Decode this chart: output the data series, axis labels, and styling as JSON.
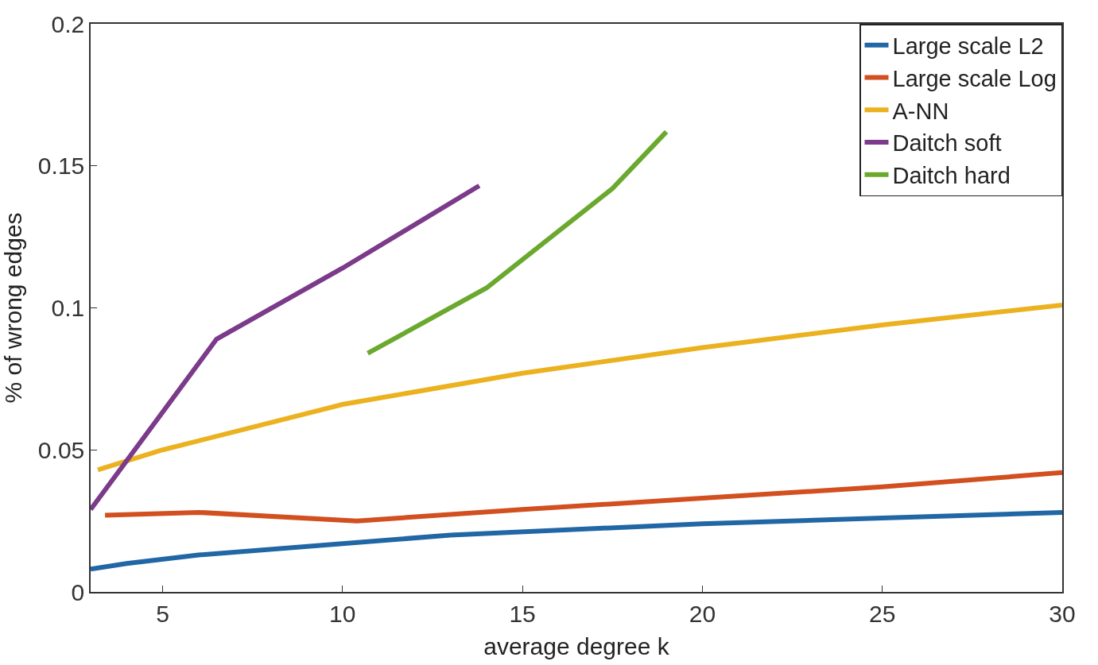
{
  "chart_data": {
    "type": "line",
    "xlabel": "average degree k",
    "ylabel": "% of wrong edges",
    "xlim": [
      3,
      30
    ],
    "xticks": [
      5,
      10,
      15,
      20,
      25,
      30
    ],
    "ylim": [
      0,
      0.2
    ],
    "yticks": [
      0,
      0.05,
      0.1,
      0.15,
      0.2
    ],
    "legend": "top right",
    "marker": "none",
    "line_style": "solid",
    "series": [
      {
        "name": "Large scale L2",
        "color": "#2166a5",
        "x": [
          3,
          4,
          6,
          10,
          13,
          20,
          25,
          30
        ],
        "values": [
          0.008,
          0.01,
          0.013,
          0.017,
          0.02,
          0.024,
          0.026,
          0.028
        ]
      },
      {
        "name": "Large scale Log",
        "color": "#d24f1f",
        "x": [
          3.4,
          6,
          10.4,
          15,
          20,
          25,
          30
        ],
        "values": [
          0.027,
          0.028,
          0.025,
          0.029,
          0.033,
          0.037,
          0.042
        ]
      },
      {
        "name": "A-NN",
        "color": "#ebb11f",
        "x": [
          3.2,
          5,
          10,
          15,
          20,
          25,
          30
        ],
        "values": [
          0.043,
          0.05,
          0.066,
          0.077,
          0.086,
          0.094,
          0.101
        ]
      },
      {
        "name": "Daitch soft",
        "color": "#7b3a8a",
        "x": [
          3,
          6.5,
          10,
          13.8
        ],
        "values": [
          0.029,
          0.089,
          0.114,
          0.143
        ]
      },
      {
        "name": "Daitch hard",
        "color": "#6aa82e",
        "x": [
          10.7,
          14,
          17.5,
          19
        ],
        "values": [
          0.084,
          0.107,
          0.142,
          0.162
        ]
      }
    ]
  }
}
